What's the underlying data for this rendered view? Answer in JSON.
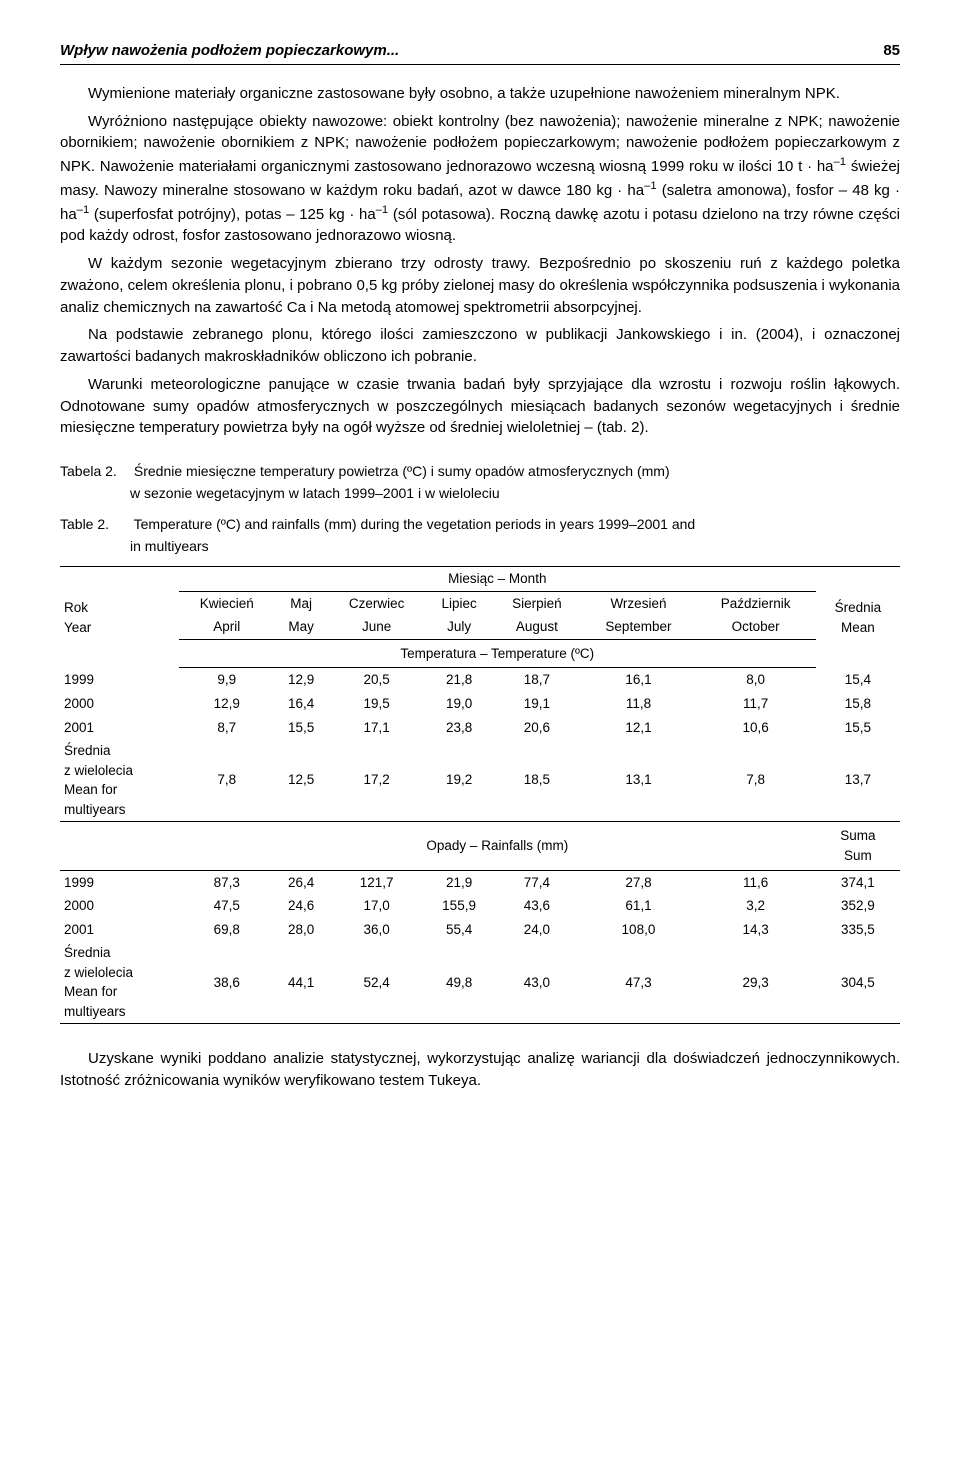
{
  "header": {
    "title": "Wpływ nawożenia podłożem popieczarkowym...",
    "page": "85"
  },
  "paragraphs": {
    "p1": "Wymienione materiały organiczne zastosowane były osobno, a także uzupełnione nawożeniem mineralnym NPK.",
    "p2_a": "Wyróżniono następujące obiekty nawozowe: obiekt kontrolny (bez nawożenia); nawożenie mineralne z NPK; nawożenie obornikiem; nawożenie obornikiem z NPK; nawożenie podłożem popieczarkowym; nawożenie podłożem popieczarkowym z NPK. Nawożenie materiałami organicznymi zastosowano jednorazowo wczesną wiosną 1999 roku w ilości 10 t · ha",
    "p2_b": " świeżej masy. Nawozy mineralne stosowano w każdym roku badań, azot w dawce 180 kg · ha",
    "p2_c": " (saletra amonowa), fosfor – 48 kg · ha",
    "p2_d": " (superfosfat potrójny), potas – 125 kg · ha",
    "p2_e": " (sól potasowa). Roczną dawkę azotu i potasu dzielono na trzy równe części pod każdy odrost, fosfor zastosowano jednorazowo wiosną.",
    "p3": "W każdym sezonie wegetacyjnym zbierano trzy odrosty trawy. Bezpośrednio po skoszeniu ruń z każdego poletka zważono, celem określenia plonu, i pobrano 0,5 kg próby zielonej masy do określenia współczynnika podsuszenia i wykonania analiz chemicznych na zawartość Ca i Na metodą atomowej spektrometrii absorpcyjnej.",
    "p4": "Na podstawie zebranego plonu, którego ilości zamieszczono w publikacji Jankowskiego i in. (2004), i oznaczonej zawartości badanych makroskładników obliczono ich pobranie.",
    "p5": "Warunki meteorologiczne panujące w czasie trwania badań były sprzyjające dla wzrostu i rozwoju roślin łąkowych. Odnotowane sumy opadów atmosferycznych w poszczególnych miesiącach badanych sezonów wegetacyjnych i średnie miesięczne temperatury powietrza były na ogół wyższe od średniej wieloletniej – (tab. 2).",
    "p6": "Uzyskane wyniki poddano analizie statystycznej, wykorzystując analizę wariancji dla doświadczeń jednoczynnikowych. Istotność zróżnicowania wyników weryfikowano testem Tukeya."
  },
  "sup": "–1",
  "tableCaption": {
    "label1": "Tabela 2.",
    "text1a": "Średnie miesięczne temperatury powietrza (ºC) i sumy opadów atmosferycznych (mm)",
    "text1b": "w sezonie wegetacyjnym w latach 1999–2001 i w wieloleciu",
    "label2": "Table 2.",
    "text2a": "Temperature (ºC) and rainfalls (mm)  during the vegetation periods in years 1999–2001 and",
    "text2b": "in multiyears"
  },
  "table": {
    "rowHeader": {
      "pl": "Rok",
      "en": "Year"
    },
    "monthHeader": "Miesiąc – Month",
    "months": [
      {
        "pl": "Kwiecień",
        "en": "April"
      },
      {
        "pl": "Maj",
        "en": "May"
      },
      {
        "pl": "Czerwiec",
        "en": "June"
      },
      {
        "pl": "Lipiec",
        "en": "July"
      },
      {
        "pl": "Sierpień",
        "en": "August"
      },
      {
        "pl": "Wrzesień",
        "en": "September"
      },
      {
        "pl": "Październik",
        "en": "October"
      }
    ],
    "meanLabel": {
      "pl": "Średnia",
      "en": "Mean"
    },
    "sumLabel": {
      "pl": "Suma",
      "en": "Sum"
    },
    "tempSection": "Temperatura – Temperature (ºC)",
    "rainSection": "Opady – Rainfalls (mm)",
    "multiyearLabel": {
      "l1": "Średnia",
      "l2": "z wielolecia",
      "l3": "Mean for",
      "l4": "multiyears"
    },
    "tempRows": [
      {
        "year": "1999",
        "v": [
          "9,9",
          "12,9",
          "20,5",
          "21,8",
          "18,7",
          "16,1",
          "8,0",
          "15,4"
        ]
      },
      {
        "year": "2000",
        "v": [
          "12,9",
          "16,4",
          "19,5",
          "19,0",
          "19,1",
          "11,8",
          "11,7",
          "15,8"
        ]
      },
      {
        "year": "2001",
        "v": [
          "8,7",
          "15,5",
          "17,1",
          "23,8",
          "20,6",
          "12,1",
          "10,6",
          "15,5"
        ]
      }
    ],
    "tempMulti": [
      "7,8",
      "12,5",
      "17,2",
      "19,2",
      "18,5",
      "13,1",
      "7,8",
      "13,7"
    ],
    "rainRows": [
      {
        "year": "1999",
        "v": [
          "87,3",
          "26,4",
          "121,7",
          "21,9",
          "77,4",
          "27,8",
          "11,6",
          "374,1"
        ]
      },
      {
        "year": "2000",
        "v": [
          "47,5",
          "24,6",
          "17,0",
          "155,9",
          "43,6",
          "61,1",
          "3,2",
          "352,9"
        ]
      },
      {
        "year": "2001",
        "v": [
          "69,8",
          "28,0",
          "36,0",
          "55,4",
          "24,0",
          "108,0",
          "14,3",
          "335,5"
        ]
      }
    ],
    "rainMulti": [
      "38,6",
      "44,1",
      "52,4",
      "49,8",
      "43,0",
      "47,3",
      "29,3",
      "304,5"
    ]
  }
}
